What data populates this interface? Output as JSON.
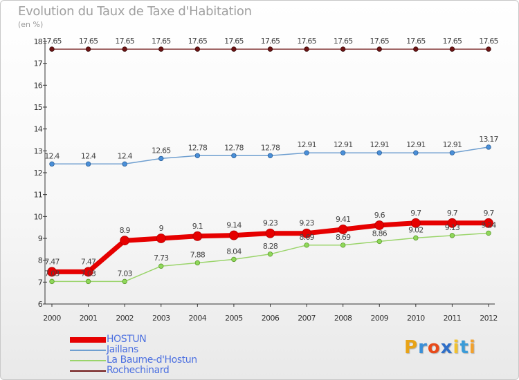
{
  "title": "Evolution du Taux de Taxe d'Habitation",
  "unit_label": "(en %)",
  "logo": {
    "text": "Proxiti",
    "letters": [
      "P",
      "r",
      "o",
      "x",
      "i",
      "t",
      "i"
    ],
    "colors": [
      "#e8a317",
      "#3a8fd8",
      "#e84a1a",
      "#2f6fc8",
      "#f2c12e",
      "#3a9bd8",
      "#f2a12e"
    ]
  },
  "chart_data": {
    "type": "line",
    "title": "Evolution du Taux de Taxe d'Habitation",
    "ylabel": "(en %)",
    "xlabel": "",
    "x": [
      "2000",
      "2001",
      "2002",
      "2003",
      "2004",
      "2005",
      "2006",
      "2007",
      "2008",
      "2009",
      "2010",
      "2011",
      "2012"
    ],
    "ylim": [
      6,
      18
    ],
    "yticks": [
      "6",
      "7",
      "8",
      "9",
      "10",
      "11",
      "12",
      "13",
      "14",
      "15",
      "16",
      "17",
      "18"
    ],
    "grid": false,
    "legend_position": "bottom-left",
    "series": [
      {
        "name": "HOSTUN",
        "color": "#e60000",
        "values": [
          7.47,
          7.47,
          8.9,
          9,
          9.1,
          9.14,
          9.23,
          9.23,
          9.41,
          9.6,
          9.7,
          9.7,
          9.7
        ],
        "labels": [
          "7.47",
          "7.47",
          "8.9",
          "9",
          "9.1",
          "9.14",
          "9.23",
          "9.23",
          "9.41",
          "9.6",
          "9.7",
          "9.7",
          "9.7"
        ]
      },
      {
        "name": "Jaillans",
        "color": "#6f9fd0",
        "values": [
          12.4,
          12.4,
          12.4,
          12.65,
          12.78,
          12.78,
          12.78,
          12.91,
          12.91,
          12.91,
          12.91,
          12.91,
          13.17
        ],
        "labels": [
          "12.4",
          "12.4",
          "12.4",
          "12.65",
          "12.78",
          "12.78",
          "12.78",
          "12.91",
          "12.91",
          "12.91",
          "12.91",
          "12.91",
          "13.17"
        ]
      },
      {
        "name": "La Baume-d'Hostun",
        "color": "#9ad46a",
        "values": [
          7.03,
          7.03,
          7.03,
          7.73,
          7.88,
          8.04,
          8.28,
          8.69,
          8.69,
          8.86,
          9.02,
          9.13,
          9.24
        ],
        "labels": [
          "7.03",
          "7.03",
          "7.03",
          "7.73",
          "7.88",
          "8.04",
          "8.28",
          "8.69",
          "8.69",
          "8.86",
          "9.02",
          "9.13",
          "9.24"
        ]
      },
      {
        "name": "Rochechinard",
        "color": "#6e1414",
        "values": [
          17.65,
          17.65,
          17.65,
          17.65,
          17.65,
          17.65,
          17.65,
          17.65,
          17.65,
          17.65,
          17.65,
          17.65,
          17.65
        ],
        "labels": [
          "17.65",
          "17.65",
          "17.65",
          "17.65",
          "17.65",
          "17.65",
          "17.65",
          "17.65",
          "17.65",
          "17.65",
          "17.65",
          "17.65",
          "17.65"
        ]
      }
    ]
  }
}
